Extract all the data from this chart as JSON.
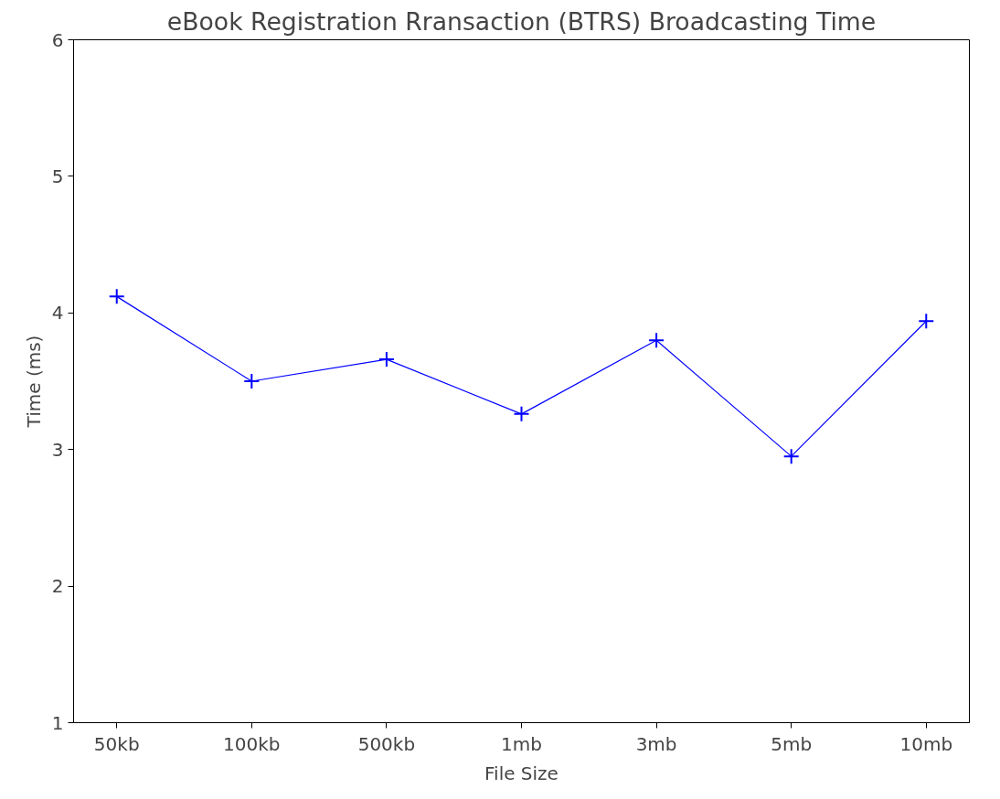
{
  "chart_data": {
    "type": "line",
    "title": "eBook Registration Rransaction (BTRS) Broadcasting Time",
    "xlabel": "File Size",
    "ylabel": "Time (ms)",
    "categories": [
      "50kb",
      "100kb",
      "500kb",
      "1mb",
      "3mb",
      "5mb",
      "10mb"
    ],
    "series": [
      {
        "color": "#0000ff",
        "values": [
          4.12,
          3.5,
          3.66,
          3.26,
          3.8,
          2.95,
          3.94
        ]
      }
    ],
    "ylim": [
      1,
      6
    ],
    "yticks": [
      1,
      2,
      3,
      4,
      5,
      6
    ],
    "grid": false,
    "marker": "cross",
    "line_style": "solid"
  }
}
